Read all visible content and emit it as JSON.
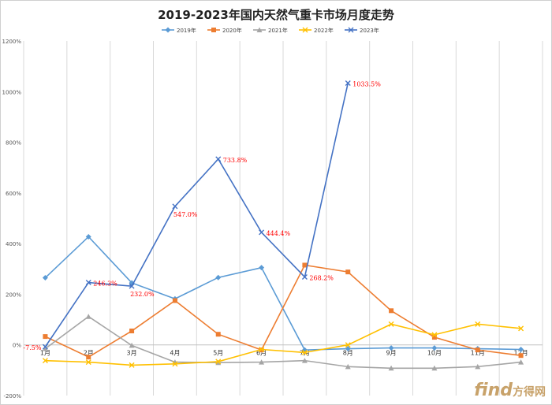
{
  "chart_data": {
    "type": "line",
    "title": "2019-2023年国内天然气重卡市场月度走势",
    "categories": [
      "1月",
      "2月",
      "3月",
      "4月",
      "5月",
      "6月",
      "7月",
      "8月",
      "9月",
      "10月",
      "11月",
      "12月"
    ],
    "y_ticks": [
      "-200%",
      "0%",
      "200%",
      "400%",
      "600%",
      "800%",
      "1000%",
      "1200%"
    ],
    "ylim": [
      -200,
      1200
    ],
    "grid": "vertical",
    "legend_position": "top-center",
    "series": [
      {
        "name": "2019年",
        "color": "#5B9BD5",
        "marker": "diamond",
        "values": [
          265,
          427,
          245,
          182,
          266,
          305,
          -20,
          -15,
          -12,
          -12,
          -15,
          -18
        ]
      },
      {
        "name": "2020年",
        "color": "#ED7D31",
        "marker": "square",
        "values": [
          33,
          -48,
          55,
          175,
          42,
          -20,
          315,
          288,
          135,
          30,
          -20,
          -42
        ]
      },
      {
        "name": "2021年",
        "color": "#A5A5A5",
        "marker": "triangle",
        "values": [
          -15,
          112,
          -2,
          -68,
          -70,
          -68,
          -62,
          -86,
          -92,
          -92,
          -86,
          -68
        ]
      },
      {
        "name": "2022年",
        "color": "#FFC000",
        "marker": "x",
        "values": [
          -62,
          -68,
          -80,
          -75,
          -66,
          -18,
          -30,
          0,
          82,
          40,
          82,
          65
        ]
      },
      {
        "name": "2023年",
        "color": "#4472C4",
        "marker": "x",
        "values": [
          -7.5,
          246.3,
          232,
          547,
          733.8,
          444.4,
          268.2,
          1033.5,
          null,
          null,
          null,
          null
        ]
      }
    ],
    "annotations": [
      {
        "text": "-7.5%",
        "series": "2023年",
        "category": "1月",
        "value": -7.5
      },
      {
        "text": "246.3%",
        "series": "2023年",
        "category": "2月",
        "value": 246.3
      },
      {
        "text": "232.0%",
        "series": "2023年",
        "category": "3月",
        "value": 232
      },
      {
        "text": "547.0%",
        "series": "2023年",
        "category": "4月",
        "value": 547
      },
      {
        "text": "733.8%",
        "series": "2023年",
        "category": "5月",
        "value": 733.8
      },
      {
        "text": "444.4%",
        "series": "2023年",
        "category": "6月",
        "value": 444.4
      },
      {
        "text": "268.2%",
        "series": "2023年",
        "category": "7月",
        "value": 268.2
      },
      {
        "text": "1033.5%",
        "series": "2023年",
        "category": "8月",
        "value": 1033.5
      }
    ],
    "annotation_color": "#FF0000"
  },
  "watermark": {
    "brand": "find",
    "suffix": "方得网"
  }
}
